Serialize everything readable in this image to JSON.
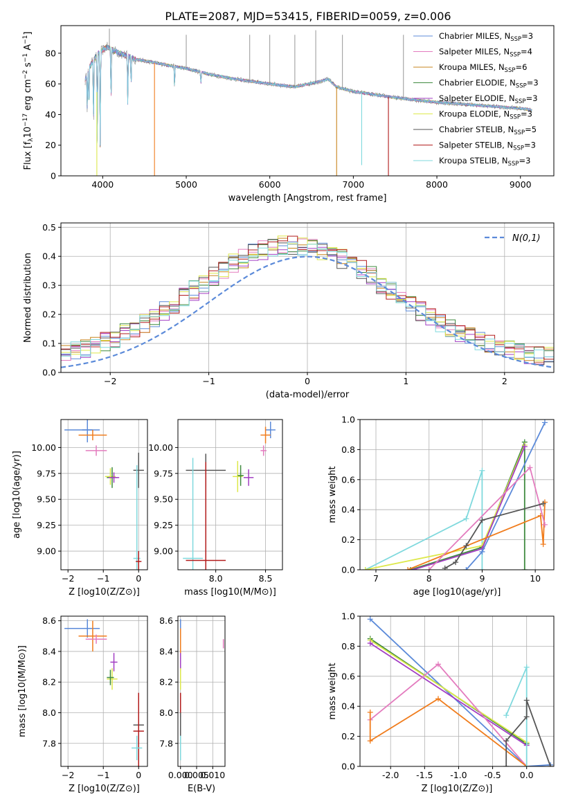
{
  "figure_title": "PLATE=2087, MJD=53415, FIBERID=0059, z=0.006",
  "colors": {
    "Chabrier MILES": "#5b8ad9",
    "Salpeter MILES": "#e37bbe",
    "Kroupa MILES": "#c7841c",
    "Chabrier ELODIE": "#3f8a3f",
    "Salpeter ELODIE": "#a23ec3",
    "Kroupa ELODIE": "#dde84a",
    "Chabrier STELIB": "#555555",
    "Salpeter STELIB": "#b21b1b",
    "Kroupa STELIB": "#7fd9dd",
    "gray": "#8a8a8a",
    "normal": "#5b8ad9",
    "orange": "#f07c1c",
    "purple": "#9b3fb6",
    "lime": "#b6d93a"
  },
  "chart_data": [
    {
      "id": "spectrum",
      "type": "line",
      "xlabel": "wavelength [Angstrom, rest frame]",
      "ylabel": "Flux [f_λ 10^-17 erg cm^-2 s^-1 A^-1]",
      "xlim": [
        3500,
        9400
      ],
      "ylim": [
        0,
        98
      ],
      "xticks": [
        4000,
        5000,
        6000,
        7000,
        8000,
        9000
      ],
      "yticks": [
        0,
        20,
        40,
        60,
        80
      ],
      "legend_position": "top-right",
      "legend": [
        {
          "name": "Chabrier MILES, N",
          "sub": "SSP",
          "suffix": "=3"
        },
        {
          "name": "Salpeter MILES, N",
          "sub": "SSP",
          "suffix": "=4"
        },
        {
          "name": "Kroupa MILES, N",
          "sub": "SSP",
          "suffix": "=6"
        },
        {
          "name": "Chabrier ELODIE, N",
          "sub": "SSP",
          "suffix": "=3"
        },
        {
          "name": "Salpeter ELODIE, N",
          "sub": "SSP",
          "suffix": "=3"
        },
        {
          "name": "Kroupa ELODIE, N",
          "sub": "SSP",
          "suffix": "=3"
        },
        {
          "name": "Chabrier STELIB, N",
          "sub": "SSP",
          "suffix": "=5"
        },
        {
          "name": "Salpeter STELIB, N",
          "sub": "SSP",
          "suffix": "=3"
        },
        {
          "name": "Kroupa STELIB, N",
          "sub": "SSP",
          "suffix": "=3"
        }
      ],
      "continuum": [
        [
          3790,
          62
        ],
        [
          3850,
          72
        ],
        [
          3950,
          80
        ],
        [
          4050,
          84
        ],
        [
          4200,
          80
        ],
        [
          4400,
          76
        ],
        [
          4600,
          74
        ],
        [
          4800,
          72
        ],
        [
          5000,
          70
        ],
        [
          5300,
          66
        ],
        [
          5600,
          63
        ],
        [
          6000,
          60
        ],
        [
          6300,
          58
        ],
        [
          6550,
          61
        ],
        [
          6700,
          63
        ],
        [
          6800,
          58
        ],
        [
          7000,
          55
        ],
        [
          7500,
          51
        ],
        [
          8000,
          48
        ],
        [
          8500,
          46
        ],
        [
          9000,
          44
        ],
        [
          9140,
          43
        ]
      ],
      "absorption_lines": [
        [
          3815,
          42
        ],
        [
          3835,
          40
        ],
        [
          3890,
          28
        ],
        [
          3935,
          15
        ],
        [
          3970,
          20
        ],
        [
          4100,
          44
        ],
        [
          4300,
          48
        ],
        [
          4340,
          58
        ],
        [
          4860,
          56
        ],
        [
          5175,
          60
        ]
      ],
      "spikes_down": [
        [
          3930,
          0
        ],
        [
          4620,
          0
        ],
        [
          6800,
          0
        ],
        [
          7100,
          7
        ],
        [
          7420,
          0
        ]
      ],
      "spikes_up": [
        [
          4080,
          96
        ],
        [
          5000,
          92
        ],
        [
          5760,
          92
        ],
        [
          6000,
          92
        ],
        [
          6300,
          92
        ],
        [
          6550,
          95
        ],
        [
          6870,
          92
        ],
        [
          7600,
          92
        ]
      ]
    },
    {
      "id": "residuals",
      "type": "histogram",
      "xlabel": "(data-model)/error",
      "ylabel": "Normed distribution",
      "xlim": [
        -2.5,
        2.5
      ],
      "ylim": [
        0,
        0.515
      ],
      "xticks": [
        -2,
        -1,
        0,
        1,
        2
      ],
      "yticks": [
        0.0,
        0.1,
        0.2,
        0.3,
        0.4,
        0.5
      ],
      "bin_width": 0.1,
      "reference_curve": {
        "name": "N(0,1)",
        "mean": 0,
        "sigma": 1,
        "style": "dashed"
      },
      "legend_position": "top-right"
    },
    {
      "id": "age_vs_Z",
      "type": "scatter",
      "xlabel": "Z [log10(Z/Z⊙)]",
      "ylabel": "age [log10(age/yr)]",
      "xlim": [
        -2.2,
        0.25
      ],
      "ylim": [
        8.82,
        10.27
      ],
      "xticks": [
        -2,
        -1,
        0
      ],
      "yticks": [
        9.0,
        9.25,
        9.5,
        9.75,
        10.0
      ],
      "points": [
        {
          "x": -1.6,
          "y": 10.17,
          "xerr": 0.5,
          "yerr": 0.0,
          "c": "Chabrier MILES"
        },
        {
          "x": -1.45,
          "y": 10.17,
          "xerr": 0.15,
          "yerr": 0.12,
          "c": "Chabrier MILES"
        },
        {
          "x": -1.3,
          "y": 10.12,
          "xerr": 0.4,
          "yerr": 0.05,
          "c": "orange"
        },
        {
          "x": -1.2,
          "y": 9.97,
          "xerr": 0.3,
          "yerr": 0.05,
          "c": "Salpeter MILES"
        },
        {
          "x": -0.8,
          "y": 9.72,
          "xerr": 0.15,
          "yerr": 0.08,
          "c": "Kroupa ELODIE"
        },
        {
          "x": -0.75,
          "y": 9.71,
          "xerr": 0.15,
          "yerr": 0.1,
          "c": "Chabrier ELODIE"
        },
        {
          "x": -0.7,
          "y": 9.71,
          "xerr": 0.15,
          "yerr": 0.05,
          "c": "Salpeter ELODIE"
        },
        {
          "x": 0.0,
          "y": 9.78,
          "xerr": 0.15,
          "yerr": 0.17,
          "c": "Chabrier STELIB"
        },
        {
          "x": -0.05,
          "y": 8.93,
          "xerr": 0.1,
          "yerr": 0.9,
          "c": "Kroupa STELIB"
        },
        {
          "x": 0.0,
          "y": 8.9,
          "xerr": 0.08,
          "yerr": 0.1,
          "c": "Salpeter STELIB"
        }
      ]
    },
    {
      "id": "age_vs_mass",
      "type": "scatter",
      "xlabel": "mass [log10(M/M⊙)]",
      "ylabel": "",
      "xlim": [
        7.62,
        8.67
      ],
      "ylim": [
        8.82,
        10.27
      ],
      "xticks": [
        8.0,
        8.5
      ],
      "yticks": [
        9.0,
        9.25,
        9.5,
        9.75,
        10.0
      ],
      "points": [
        {
          "x": 8.55,
          "y": 10.17,
          "xerr": 0.05,
          "yerr": 0.08,
          "c": "Chabrier MILES"
        },
        {
          "x": 8.5,
          "y": 10.12,
          "xerr": 0.05,
          "yerr": 0.08,
          "c": "orange"
        },
        {
          "x": 8.48,
          "y": 9.97,
          "xerr": 0.03,
          "yerr": 0.05,
          "c": "Salpeter MILES"
        },
        {
          "x": 8.22,
          "y": 9.72,
          "xerr": 0.05,
          "yerr": 0.15,
          "c": "Kroupa ELODIE"
        },
        {
          "x": 8.25,
          "y": 9.73,
          "xerr": 0.03,
          "yerr": 0.1,
          "c": "Chabrier ELODIE"
        },
        {
          "x": 8.33,
          "y": 9.71,
          "xerr": 0.05,
          "yerr": 0.08,
          "c": "Salpeter ELODIE"
        },
        {
          "x": 7.9,
          "y": 9.78,
          "xerr": 0.2,
          "yerr": 0.16,
          "c": "Chabrier STELIB"
        },
        {
          "x": 7.77,
          "y": 8.93,
          "xerr": 0.1,
          "yerr": 0.97,
          "c": "Kroupa STELIB"
        },
        {
          "x": 7.9,
          "y": 8.91,
          "xerr": 0.2,
          "yerr": 0.95,
          "c": "Salpeter STELIB"
        }
      ]
    },
    {
      "id": "massweight_vs_age",
      "type": "line",
      "xlabel": "age [log10(age/yr)]",
      "ylabel": "mass weight",
      "xlim": [
        6.7,
        10.35
      ],
      "ylim": [
        0,
        1.0
      ],
      "xticks": [
        7,
        8,
        9,
        10
      ],
      "yticks": [
        0.0,
        0.2,
        0.4,
        0.6,
        0.8,
        1.0
      ],
      "series": [
        {
          "c": "Kroupa STELIB",
          "x": [
            6.8,
            8.7,
            9.0,
            9.0
          ],
          "y": [
            0.0,
            0.34,
            0.66,
            0.0
          ]
        },
        {
          "c": "Chabrier ELODIE",
          "x": [
            7.65,
            9.0,
            9.8,
            9.8
          ],
          "y": [
            0.0,
            0.15,
            0.85,
            0.0
          ]
        },
        {
          "c": "Kroupa ELODIE",
          "x": [
            6.8,
            9.0,
            9.8
          ],
          "y": [
            0.0,
            0.16,
            0.83
          ]
        },
        {
          "c": "Salpeter ELODIE",
          "x": [
            7.7,
            9.0,
            9.8
          ],
          "y": [
            0.0,
            0.14,
            0.82
          ]
        },
        {
          "c": "Chabrier MILES",
          "x": [
            8.7,
            9.0,
            10.18
          ],
          "y": [
            0.0,
            0.12,
            0.98
          ]
        },
        {
          "c": "orange",
          "x": [
            7.6,
            10.1,
            10.15,
            10.18
          ],
          "y": [
            0.0,
            0.36,
            0.17,
            0.45
          ]
        },
        {
          "c": "Salpeter MILES",
          "x": [
            8.0,
            9.9,
            10.18
          ],
          "y": [
            0.0,
            0.68,
            0.3
          ]
        },
        {
          "c": "Chabrier STELIB",
          "x": [
            8.3,
            8.5,
            8.7,
            9.0,
            10.15
          ],
          "y": [
            0.01,
            0.05,
            0.16,
            0.33,
            0.44
          ]
        }
      ]
    },
    {
      "id": "mass_vs_Z",
      "type": "scatter",
      "xlabel": "Z [log10(Z/Z⊙)]",
      "ylabel": "mass [log10(M/M⊙)]",
      "xlim": [
        -2.2,
        0.25
      ],
      "ylim": [
        7.65,
        8.63
      ],
      "xticks": [
        -2,
        -1,
        0
      ],
      "yticks": [
        7.8,
        8.0,
        8.2,
        8.4,
        8.6
      ],
      "points": [
        {
          "x": -1.6,
          "y": 8.55,
          "xerr": 0.5,
          "yerr": 0.0,
          "c": "Chabrier MILES"
        },
        {
          "x": -1.45,
          "y": 8.55,
          "xerr": 0.1,
          "yerr": 0.06,
          "c": "Chabrier MILES"
        },
        {
          "x": -1.3,
          "y": 8.5,
          "xerr": 0.4,
          "yerr": 0.1,
          "c": "orange"
        },
        {
          "x": -1.2,
          "y": 8.48,
          "xerr": 0.3,
          "yerr": 0.03,
          "c": "Salpeter MILES"
        },
        {
          "x": -0.75,
          "y": 8.22,
          "xerr": 0.15,
          "yerr": 0.07,
          "c": "Kroupa ELODIE"
        },
        {
          "x": -0.8,
          "y": 8.23,
          "xerr": 0.1,
          "yerr": 0.05,
          "c": "Chabrier ELODIE"
        },
        {
          "x": -0.7,
          "y": 8.33,
          "xerr": 0.1,
          "yerr": 0.06,
          "c": "Salpeter ELODIE"
        },
        {
          "x": 0.0,
          "y": 7.92,
          "xerr": 0.15,
          "yerr": 0.15,
          "c": "Chabrier STELIB"
        },
        {
          "x": 0.0,
          "y": 7.88,
          "xerr": 0.15,
          "yerr": 0.25,
          "c": "Salpeter STELIB"
        },
        {
          "x": -0.05,
          "y": 7.77,
          "xerr": 0.15,
          "yerr": 0.08,
          "c": "Kroupa STELIB"
        }
      ]
    },
    {
      "id": "mass_vs_ebv",
      "type": "scatter",
      "xlabel": "E(B-V)",
      "ylabel": "",
      "xlim": [
        -0.0008,
        0.0138
      ],
      "ylim": [
        7.65,
        8.63
      ],
      "xticks": [
        0.0,
        0.005,
        0.01
      ],
      "yticks": [
        7.8,
        8.0,
        8.2,
        8.4,
        8.6
      ],
      "points": [
        {
          "x": 0.0,
          "y": 8.55,
          "xerr": 0,
          "yerr": 0.06,
          "c": "Chabrier MILES"
        },
        {
          "x": 0.0,
          "y": 8.45,
          "xerr": 0,
          "yerr": 0.1,
          "c": "orange"
        },
        {
          "x": 0.0,
          "y": 8.33,
          "xerr": 0,
          "yerr": 0.06,
          "c": "Salpeter ELODIE"
        },
        {
          "x": 0.0,
          "y": 8.22,
          "xerr": 0,
          "yerr": 0.07,
          "c": "Kroupa ELODIE"
        },
        {
          "x": 0.0,
          "y": 8.05,
          "xerr": 0,
          "yerr": 0.08,
          "c": "Salpeter STELIB"
        },
        {
          "x": 0.0,
          "y": 7.9,
          "xerr": 0,
          "yerr": 0.1,
          "c": "Chabrier STELIB"
        },
        {
          "x": 0.0,
          "y": 7.77,
          "xerr": 0,
          "yerr": 0.08,
          "c": "Kroupa STELIB"
        },
        {
          "x": 0.0133,
          "y": 8.45,
          "xerr": 0,
          "yerr": 0.03,
          "c": "Salpeter MILES"
        }
      ]
    },
    {
      "id": "massweight_vs_Z",
      "type": "line",
      "xlabel": "Z [log10(Z/Z⊙)]",
      "ylabel": "mass weight",
      "xlim": [
        -2.45,
        0.4
      ],
      "ylim": [
        0,
        1.0
      ],
      "xticks": [
        -2.0,
        -1.5,
        -1.0,
        -0.5,
        0.0
      ],
      "yticks": [
        0.0,
        0.2,
        0.4,
        0.6,
        0.8,
        1.0
      ],
      "series": [
        {
          "c": "Chabrier MILES",
          "x": [
            -2.3,
            0.0,
            0.35
          ],
          "y": [
            0.98,
            0.0,
            0.01
          ]
        },
        {
          "c": "Chabrier ELODIE",
          "x": [
            -2.3,
            0.0
          ],
          "y": [
            0.85,
            0.15
          ]
        },
        {
          "c": "Kroupa ELODIE",
          "x": [
            -2.3,
            0.0
          ],
          "y": [
            0.84,
            0.16
          ]
        },
        {
          "c": "Salpeter ELODIE",
          "x": [
            -2.3,
            0.0
          ],
          "y": [
            0.82,
            0.14
          ]
        },
        {
          "c": "Salpeter MILES",
          "x": [
            -2.3,
            -1.3,
            0.0
          ],
          "y": [
            0.31,
            0.68,
            0.0
          ]
        },
        {
          "c": "orange",
          "x": [
            -2.3,
            -2.3,
            -1.3,
            0.0
          ],
          "y": [
            0.36,
            0.17,
            0.45,
            0.0
          ]
        },
        {
          "c": "Kroupa STELIB",
          "x": [
            -0.3,
            0.0,
            0.0
          ],
          "y": [
            0.34,
            0.66,
            0.0
          ]
        },
        {
          "c": "Chabrier STELIB",
          "x": [
            -0.3,
            -0.3,
            0.0,
            0.0,
            0.35
          ],
          "y": [
            0.0,
            0.17,
            0.33,
            0.44,
            0.0
          ]
        }
      ]
    }
  ]
}
